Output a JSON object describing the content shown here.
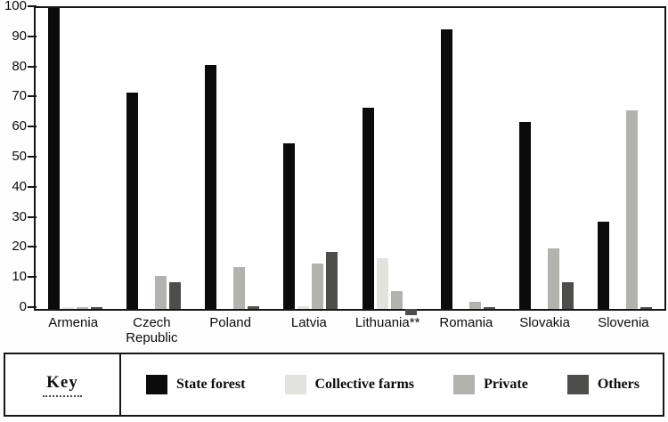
{
  "chart_data": {
    "type": "bar",
    "title": "",
    "xlabel": "",
    "ylabel": "",
    "ylim": [
      0,
      100
    ],
    "yticks": [
      0,
      10,
      20,
      30,
      40,
      50,
      60,
      70,
      80,
      90,
      100
    ],
    "grid": false,
    "legend_title": "Key",
    "legend_position": "bottom",
    "categories": [
      "Armenia",
      "Czech Republic",
      "Poland",
      "Latvia",
      "Lithuania**",
      "Romania",
      "Slovakia",
      "Slovenia"
    ],
    "series": [
      {
        "name": "State forest",
        "color": "#0b0b0b",
        "values": [
          100,
          72,
          81,
          55,
          67,
          93,
          62,
          29
        ]
      },
      {
        "name": "Collective farms",
        "color": "#e2e2df",
        "values": [
          0.5,
          0,
          0,
          1,
          17,
          0,
          0,
          0
        ]
      },
      {
        "name": "Private",
        "color": "#b2b2ae",
        "values": [
          0.5,
          11,
          14,
          15,
          6,
          2.5,
          20,
          66
        ]
      },
      {
        "name": "Others",
        "color": "#4d4d4b",
        "values": [
          0.5,
          9,
          1,
          19,
          -2,
          0.5,
          9,
          0.5
        ]
      }
    ]
  }
}
